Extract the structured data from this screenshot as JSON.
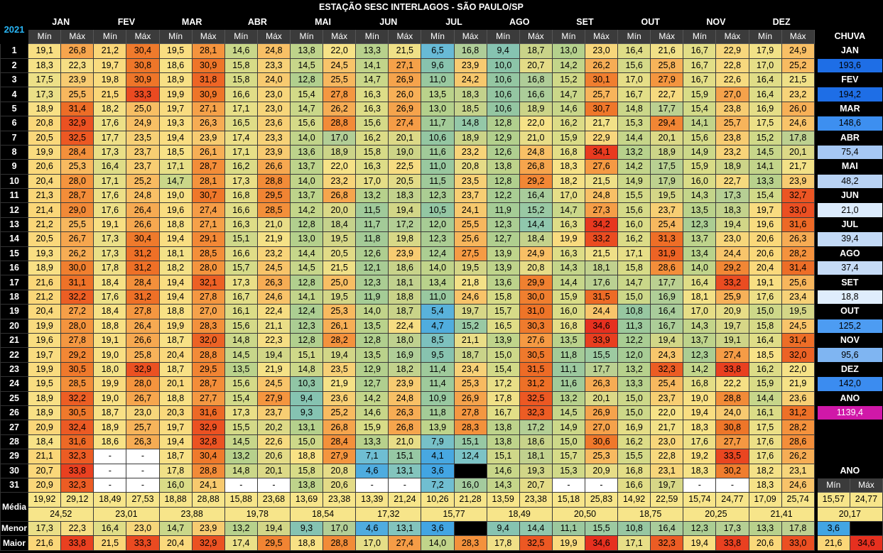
{
  "title": "ESTAÇÃO SESC INTERLAGOS - SÃO PAULO/SP",
  "year": "2021",
  "months": [
    "JAN",
    "FEV",
    "MAR",
    "ABR",
    "MAI",
    "JUN",
    "JUL",
    "AGO",
    "SET",
    "OUT",
    "NOV",
    "DEZ"
  ],
  "min_label": "Mín",
  "max_label": "Máx",
  "chuva_label": "CHUVA",
  "ano_label": "ANO",
  "rows": [
    [
      "19,1",
      "26,8",
      "21,2",
      "30,4",
      "19,5",
      "28,1",
      "14,6",
      "24,8",
      "13,8",
      "22,0",
      "13,3",
      "21,5",
      "6,5",
      "16,8",
      "9,4",
      "18,7",
      "13,0",
      "23,0",
      "16,4",
      "21,6",
      "16,7",
      "22,9",
      "17,9",
      "24,9"
    ],
    [
      "18,3",
      "22,3",
      "19,7",
      "30,8",
      "18,6",
      "30,9",
      "15,8",
      "23,3",
      "14,5",
      "24,5",
      "14,1",
      "27,1",
      "9,6",
      "23,9",
      "10,0",
      "20,7",
      "14,2",
      "26,2",
      "15,6",
      "25,8",
      "16,7",
      "22,8",
      "17,0",
      "25,2"
    ],
    [
      "17,5",
      "23,9",
      "19,8",
      "30,9",
      "18,9",
      "31,8",
      "15,8",
      "24,0",
      "12,8",
      "25,5",
      "14,7",
      "26,9",
      "11,0",
      "24,2",
      "10,6",
      "16,8",
      "15,2",
      "30,1",
      "17,0",
      "27,9",
      "16,7",
      "22,6",
      "16,4",
      "21,5"
    ],
    [
      "17,3",
      "25,5",
      "21,5",
      "33,3",
      "19,9",
      "30,9",
      "16,6",
      "23,0",
      "15,4",
      "27,8",
      "16,3",
      "26,0",
      "13,5",
      "18,3",
      "10,6",
      "16,6",
      "14,7",
      "25,7",
      "16,7",
      "22,7",
      "15,9",
      "27,0",
      "16,4",
      "23,2"
    ],
    [
      "18,9",
      "31,4",
      "18,2",
      "25,0",
      "19,7",
      "27,1",
      "17,1",
      "23,0",
      "14,7",
      "26,2",
      "16,3",
      "26,9",
      "13,0",
      "18,5",
      "10,6",
      "18,9",
      "14,6",
      "30,7",
      "14,8",
      "17,7",
      "15,4",
      "23,8",
      "16,9",
      "26,0"
    ],
    [
      "20,8",
      "32,9",
      "17,6",
      "24,9",
      "19,3",
      "26,3",
      "16,5",
      "23,6",
      "15,6",
      "28,8",
      "15,6",
      "27,4",
      "11,7",
      "14,8",
      "12,8",
      "22,0",
      "16,2",
      "21,7",
      "15,3",
      "29,4",
      "14,1",
      "25,7",
      "17,5",
      "24,6"
    ],
    [
      "20,5",
      "32,5",
      "17,7",
      "23,5",
      "19,4",
      "23,9",
      "17,4",
      "23,3",
      "14,0",
      "17,0",
      "16,2",
      "20,1",
      "10,6",
      "18,9",
      "12,9",
      "21,0",
      "15,9",
      "22,9",
      "14,4",
      "20,1",
      "15,6",
      "23,8",
      "15,2",
      "17,8"
    ],
    [
      "19,9",
      "28,4",
      "17,3",
      "23,7",
      "18,5",
      "26,1",
      "17,1",
      "23,9",
      "13,6",
      "18,9",
      "15,8",
      "19,0",
      "11,6",
      "23,2",
      "12,6",
      "24,8",
      "16,8",
      "34,1",
      "13,2",
      "18,9",
      "14,9",
      "23,2",
      "14,5",
      "20,1"
    ],
    [
      "20,6",
      "25,3",
      "16,4",
      "23,7",
      "17,1",
      "28,7",
      "16,2",
      "26,6",
      "13,7",
      "22,0",
      "16,3",
      "22,5",
      "11,0",
      "20,8",
      "13,8",
      "26,8",
      "18,3",
      "27,6",
      "14,2",
      "17,5",
      "15,9",
      "18,9",
      "14,1",
      "21,7"
    ],
    [
      "20,4",
      "28,0",
      "17,1",
      "25,2",
      "14,7",
      "28,1",
      "17,3",
      "28,8",
      "14,0",
      "23,2",
      "17,0",
      "20,5",
      "11,5",
      "23,5",
      "12,8",
      "29,2",
      "18,2",
      "21,5",
      "14,9",
      "17,9",
      "16,0",
      "22,7",
      "13,3",
      "23,9"
    ],
    [
      "21,3",
      "28,7",
      "17,6",
      "24,8",
      "19,0",
      "30,7",
      "16,8",
      "29,5",
      "13,7",
      "26,8",
      "13,2",
      "18,3",
      "12,3",
      "23,7",
      "12,2",
      "16,4",
      "17,0",
      "24,8",
      "15,5",
      "19,5",
      "14,3",
      "17,3",
      "15,4",
      "32,7"
    ],
    [
      "21,4",
      "29,0",
      "17,6",
      "26,4",
      "19,6",
      "27,4",
      "16,6",
      "28,5",
      "14,2",
      "20,0",
      "11,5",
      "19,4",
      "10,5",
      "24,1",
      "11,9",
      "15,2",
      "14,7",
      "27,3",
      "15,6",
      "23,7",
      "13,5",
      "18,3",
      "19,7",
      "33,0"
    ],
    [
      "21,2",
      "25,5",
      "19,1",
      "26,6",
      "18,8",
      "27,1",
      "16,3",
      "21,0",
      "12,8",
      "18,4",
      "11,7",
      "17,2",
      "12,0",
      "25,5",
      "12,3",
      "14,4",
      "16,3",
      "34,2",
      "16,0",
      "25,4",
      "12,3",
      "19,4",
      "19,6",
      "31,6"
    ],
    [
      "20,5",
      "26,7",
      "17,3",
      "30,4",
      "19,4",
      "29,1",
      "15,1",
      "21,9",
      "13,0",
      "19,5",
      "11,8",
      "19,8",
      "12,3",
      "25,6",
      "12,7",
      "18,4",
      "19,9",
      "33,2",
      "16,2",
      "31,3",
      "13,7",
      "23,0",
      "20,6",
      "26,3"
    ],
    [
      "19,3",
      "26,2",
      "17,3",
      "31,2",
      "18,1",
      "28,5",
      "16,6",
      "23,2",
      "14,4",
      "20,5",
      "12,6",
      "23,9",
      "12,4",
      "27,5",
      "13,9",
      "24,9",
      "16,3",
      "21,5",
      "17,1",
      "31,9",
      "13,4",
      "24,4",
      "20,6",
      "28,2"
    ],
    [
      "18,9",
      "30,0",
      "17,8",
      "31,2",
      "18,2",
      "28,0",
      "15,7",
      "24,5",
      "14,5",
      "21,5",
      "12,1",
      "18,6",
      "14,0",
      "19,5",
      "13,9",
      "20,8",
      "14,3",
      "18,1",
      "15,8",
      "28,6",
      "14,0",
      "29,2",
      "20,4",
      "31,4"
    ],
    [
      "21,6",
      "31,1",
      "18,4",
      "28,4",
      "19,4",
      "32,1",
      "17,3",
      "26,3",
      "12,8",
      "25,0",
      "12,3",
      "18,1",
      "13,4",
      "21,8",
      "13,6",
      "29,9",
      "14,4",
      "17,6",
      "14,7",
      "17,7",
      "16,4",
      "33,2",
      "19,1",
      "25,6"
    ],
    [
      "21,2",
      "32,2",
      "17,6",
      "31,2",
      "19,4",
      "27,8",
      "16,7",
      "24,6",
      "14,1",
      "19,5",
      "11,9",
      "18,8",
      "11,0",
      "24,6",
      "15,8",
      "30,0",
      "15,9",
      "31,5",
      "15,0",
      "16,9",
      "18,1",
      "25,9",
      "17,6",
      "23,4"
    ],
    [
      "20,4",
      "27,2",
      "18,4",
      "27,8",
      "18,8",
      "27,0",
      "16,1",
      "22,4",
      "12,4",
      "25,3",
      "14,0",
      "18,7",
      "5,4",
      "19,7",
      "15,7",
      "31,0",
      "16,0",
      "24,4",
      "10,8",
      "16,4",
      "17,0",
      "20,9",
      "15,0",
      "19,5"
    ],
    [
      "19,9",
      "28,0",
      "18,8",
      "26,4",
      "19,9",
      "28,3",
      "15,6",
      "21,1",
      "12,3",
      "26,1",
      "13,5",
      "22,4",
      "4,7",
      "15,2",
      "16,5",
      "30,3",
      "16,8",
      "34,6",
      "11,3",
      "16,7",
      "14,3",
      "19,7",
      "15,8",
      "24,5"
    ],
    [
      "19,6",
      "27,8",
      "19,1",
      "26,6",
      "18,7",
      "32,0",
      "14,8",
      "22,3",
      "12,8",
      "28,2",
      "12,8",
      "18,0",
      "8,5",
      "21,1",
      "13,9",
      "27,6",
      "13,5",
      "33,9",
      "12,2",
      "19,4",
      "13,7",
      "19,1",
      "16,4",
      "31,4"
    ],
    [
      "19,7",
      "29,2",
      "19,0",
      "25,8",
      "20,4",
      "28,8",
      "14,5",
      "19,4",
      "15,1",
      "19,4",
      "13,5",
      "16,9",
      "9,5",
      "18,7",
      "15,0",
      "30,5",
      "11,8",
      "15,5",
      "12,0",
      "24,3",
      "12,3",
      "27,4",
      "18,5",
      "32,0"
    ],
    [
      "19,9",
      "30,5",
      "18,0",
      "32,9",
      "18,7",
      "29,5",
      "13,5",
      "21,9",
      "14,8",
      "23,5",
      "12,9",
      "18,2",
      "11,4",
      "23,4",
      "15,4",
      "31,5",
      "11,1",
      "17,7",
      "13,2",
      "32,3",
      "14,2",
      "33,8",
      "16,2",
      "22,0"
    ],
    [
      "19,5",
      "28,5",
      "19,9",
      "28,0",
      "20,1",
      "28,7",
      "15,6",
      "24,5",
      "10,3",
      "21,9",
      "12,7",
      "23,9",
      "11,4",
      "25,3",
      "17,2",
      "31,2",
      "11,6",
      "26,3",
      "13,3",
      "25,4",
      "16,8",
      "22,2",
      "15,9",
      "21,9"
    ],
    [
      "18,9",
      "32,2",
      "19,0",
      "26,7",
      "18,8",
      "27,7",
      "15,4",
      "27,9",
      "9,4",
      "23,6",
      "14,2",
      "24,8",
      "10,9",
      "26,9",
      "17,8",
      "32,5",
      "13,2",
      "20,1",
      "15,0",
      "23,7",
      "19,0",
      "28,8",
      "14,4",
      "23,6"
    ],
    [
      "18,9",
      "30,5",
      "18,7",
      "23,0",
      "20,3",
      "31,6",
      "17,3",
      "23,7",
      "9,3",
      "25,2",
      "14,6",
      "26,3",
      "11,8",
      "27,8",
      "16,7",
      "32,3",
      "14,5",
      "26,9",
      "15,0",
      "22,0",
      "19,4",
      "24,0",
      "16,1",
      "31,2"
    ],
    [
      "20,9",
      "32,4",
      "18,9",
      "25,7",
      "19,7",
      "32,9",
      "15,5",
      "20,2",
      "13,1",
      "26,8",
      "15,9",
      "26,8",
      "13,9",
      "28,3",
      "13,8",
      "17,2",
      "14,9",
      "27,0",
      "16,9",
      "21,7",
      "18,3",
      "30,8",
      "17,5",
      "28,2"
    ],
    [
      "18,4",
      "31,6",
      "18,6",
      "26,3",
      "19,4",
      "32,8",
      "14,5",
      "22,6",
      "15,0",
      "28,4",
      "13,3",
      "21,0",
      "7,9",
      "15,1",
      "13,8",
      "18,6",
      "15,0",
      "30,6",
      "16,2",
      "23,0",
      "17,6",
      "27,7",
      "17,6",
      "28,6"
    ],
    [
      "21,1",
      "32,3",
      "-",
      "-",
      "18,7",
      "30,4",
      "13,2",
      "20,6",
      "18,8",
      "27,9",
      "7,1",
      "15,1",
      "4,1",
      "12,4",
      "15,1",
      "18,1",
      "15,7",
      "25,3",
      "15,5",
      "22,8",
      "19,2",
      "33,5",
      "17,6",
      "26,2"
    ],
    [
      "20,7",
      "33,8",
      "-",
      "-",
      "17,8",
      "28,8",
      "14,8",
      "20,1",
      "15,8",
      "20,8",
      "4,6",
      "13,1",
      "3,6",
      "11,0",
      "14,6",
      "19,3",
      "15,3",
      "20,9",
      "16,8",
      "23,1",
      "18,3",
      "30,2",
      "18,2",
      "23,1"
    ],
    [
      "20,9",
      "32,3",
      "-",
      "-",
      "16,0",
      "24,1",
      "-",
      "-",
      "13,8",
      "20,6",
      "-",
      "-",
      "7,2",
      "16,0",
      "14,3",
      "20,7",
      "-",
      "-",
      "16,6",
      "19,7",
      "-",
      "-",
      "18,3",
      "24,6"
    ]
  ],
  "rain": [
    {
      "month": "JAN",
      "value": "193,6",
      "color": "#1e6ee6"
    },
    {
      "month": "FEV",
      "value": "194,2",
      "color": "#1e6ee6"
    },
    {
      "month": "MAR",
      "value": "148,6",
      "color": "#3d8ff0"
    },
    {
      "month": "ABR",
      "value": "75,4",
      "color": "#a6c8f4"
    },
    {
      "month": "MAI",
      "value": "48,2",
      "color": "#b9d3f4"
    },
    {
      "month": "JUN",
      "value": "21,0",
      "color": "#dcebfc"
    },
    {
      "month": "JUL",
      "value": "39,4",
      "color": "#c3daf6"
    },
    {
      "month": "AGO",
      "value": "37,4",
      "color": "#c6dbf6"
    },
    {
      "month": "SET",
      "value": "18,8",
      "color": "#dfedfc"
    },
    {
      "month": "OUT",
      "value": "125,2",
      "color": "#4d9cf2"
    },
    {
      "month": "NOV",
      "value": "95,6",
      "color": "#7fb5f2"
    },
    {
      "month": "DEZ",
      "value": "142,0",
      "color": "#3b8cf0"
    }
  ],
  "rain_total": {
    "label": "ANO",
    "value": "1139,4",
    "color": "#d018a8"
  },
  "media_label": "Média",
  "menor_label": "Menor",
  "maior_label": "Maior",
  "media": [
    "19,92",
    "29,12",
    "18,49",
    "27,53",
    "18,88",
    "28,88",
    "15,88",
    "23,68",
    "13,69",
    "23,38",
    "13,39",
    "21,24",
    "10,26",
    "21,28",
    "13,59",
    "23,38",
    "15,18",
    "25,83",
    "14,92",
    "22,59",
    "15,74",
    "24,77",
    "17,09",
    "25,74"
  ],
  "media_year": [
    "15,57",
    "24,77"
  ],
  "media2": [
    "24,52",
    "23,01",
    "23,88",
    "19,78",
    "18,54",
    "17,32",
    "15,77",
    "18,49",
    "20,50",
    "18,75",
    "20,25",
    "21,41"
  ],
  "media2_year": "20,17",
  "menor": [
    "17,3",
    "22,3",
    "16,4",
    "23,0",
    "14,7",
    "23,9",
    "13,2",
    "19,4",
    "9,3",
    "17,0",
    "4,6",
    "13,1",
    "3,6",
    "11,0",
    "9,4",
    "14,4",
    "11,1",
    "15,5",
    "10,8",
    "16,4",
    "12,3",
    "17,3",
    "13,3",
    "17,8"
  ],
  "menor_year": [
    "3,6",
    "11,0"
  ],
  "maior": [
    "21,6",
    "33,8",
    "21,5",
    "33,3",
    "20,4",
    "32,9",
    "17,4",
    "29,5",
    "18,8",
    "28,8",
    "17,0",
    "27,4",
    "14,0",
    "28,3",
    "17,8",
    "32,5",
    "19,9",
    "34,6",
    "17,1",
    "32,3",
    "19,4",
    "33,8",
    "20,6",
    "33,0"
  ],
  "maior_year": [
    "21,6",
    "34,6"
  ]
}
